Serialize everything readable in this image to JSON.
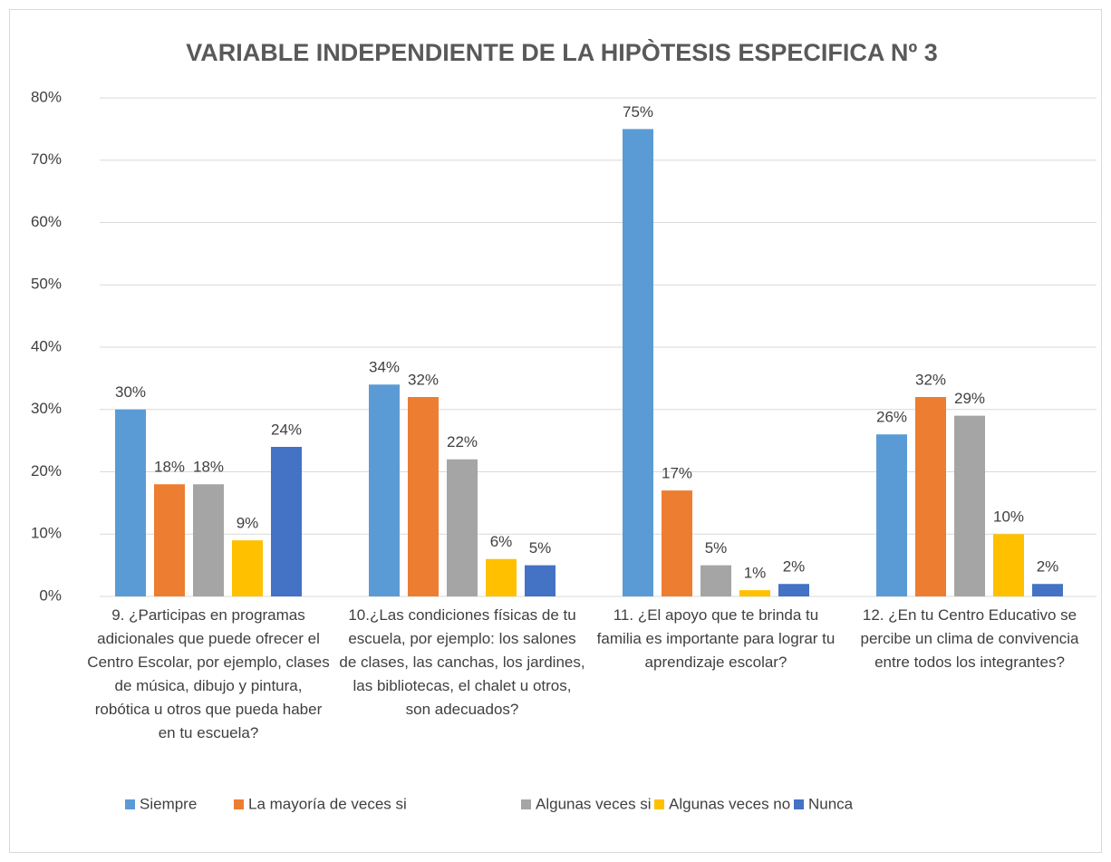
{
  "chart_data": {
    "type": "bar",
    "title": "VARIABLE INDEPENDIENTE DE LA HIPÒTESIS ESPECIFICA Nº 3",
    "categories": [
      "9. ¿Participas en programas adicionales que puede ofrecer el Centro Escolar, por ejemplo, clases de música, dibujo y pintura, robótica u otros que pueda haber en tu escuela?",
      "10.¿Las condiciones físicas de tu escuela, por ejemplo: los salones de clases, las canchas, los jardines, las bibliotecas, el chalet u otros, son adecuados?",
      "11. ¿El apoyo que te brinda tu familia es importante para lograr tu aprendizaje escolar?",
      "12. ¿En tu Centro Educativo se percibe un clima de convivencia entre todos los integrantes?"
    ],
    "series": [
      {
        "name": "Siempre",
        "color": "#5b9bd5",
        "values": [
          30,
          34,
          75,
          26
        ],
        "value_labels": [
          "30%",
          "34%",
          "75%",
          "26%"
        ]
      },
      {
        "name": "La mayoría de veces si",
        "color": "#ed7d31",
        "values": [
          18,
          32,
          17,
          32
        ],
        "value_labels": [
          "18%",
          "32%",
          "17%",
          "32%"
        ]
      },
      {
        "name": "Algunas veces si",
        "color": "#a5a5a5",
        "values": [
          18,
          22,
          5,
          29
        ],
        "value_labels": [
          "18%",
          "22%",
          "5%",
          "29%"
        ]
      },
      {
        "name": "Algunas veces no",
        "color": "#ffc000",
        "values": [
          9,
          6,
          1,
          10
        ],
        "value_labels": [
          "9%",
          "6%",
          "1%",
          "10%"
        ]
      },
      {
        "name": "Nunca",
        "color": "#4472c4",
        "values": [
          24,
          5,
          2,
          2
        ],
        "value_labels": [
          "24%",
          "5%",
          "2%",
          "2%"
        ]
      }
    ],
    "ylim": [
      0,
      80
    ],
    "yticks": [
      {
        "value": 0,
        "label": "0%"
      },
      {
        "value": 10,
        "label": "10%"
      },
      {
        "value": 20,
        "label": "20%"
      },
      {
        "value": 30,
        "label": "30%"
      },
      {
        "value": 40,
        "label": "40%"
      },
      {
        "value": 50,
        "label": "50%"
      },
      {
        "value": 60,
        "label": "60%"
      },
      {
        "value": 70,
        "label": "70%"
      },
      {
        "value": 80,
        "label": "80%"
      }
    ],
    "grid": true,
    "legend": "bottom"
  }
}
